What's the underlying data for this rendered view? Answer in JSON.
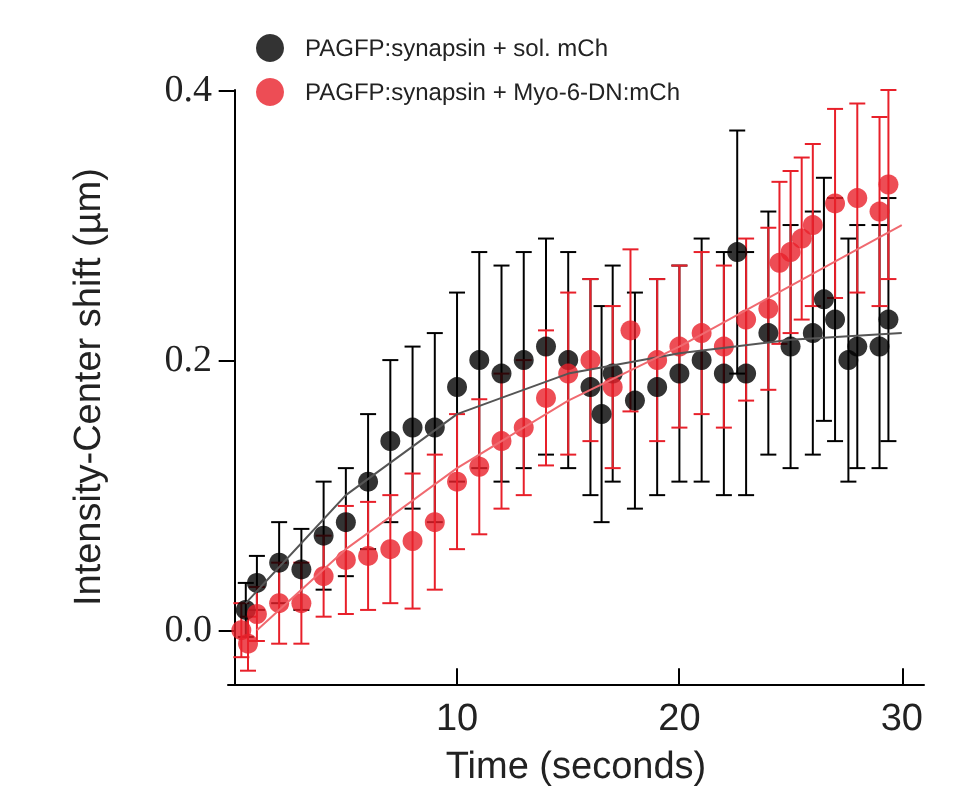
{
  "chart_data": {
    "type": "scatter",
    "xlabel": "Time (seconds)",
    "ylabel": "Intensity-Center shift (µm)",
    "xlim": [
      -0.3,
      31
    ],
    "xticks": [
      10,
      20,
      30
    ],
    "ylim": [
      -0.04,
      0.4
    ],
    "yticks": [
      {
        "value": 0,
        "label": "0.0"
      },
      {
        "value": 0.2,
        "label": "0.2"
      },
      {
        "value": 0.4,
        "label": "0.4"
      }
    ],
    "legend": "top left",
    "grid": false,
    "series": [
      {
        "name": "PAGFP:synapsin + sol. mCh",
        "color": "#000000",
        "marker": "circle",
        "x": [
          0.5,
          1,
          2,
          3,
          4,
          5,
          6,
          7,
          8,
          9,
          10,
          11,
          12,
          13,
          14,
          15,
          16,
          16.5,
          17,
          18,
          19,
          20,
          21,
          22,
          22.6,
          23,
          24,
          25,
          26,
          26.5,
          27,
          27.6,
          28,
          29,
          29.4
        ],
        "values": [
          0.015,
          0.035,
          0.05,
          0.045,
          0.07,
          0.08,
          0.11,
          0.14,
          0.15,
          0.15,
          0.18,
          0.2,
          0.19,
          0.2,
          0.21,
          0.2,
          0.18,
          0.16,
          0.19,
          0.17,
          0.18,
          0.19,
          0.2,
          0.19,
          0.28,
          0.19,
          0.22,
          0.21,
          0.22,
          0.245,
          0.23,
          0.2,
          0.21,
          0.21,
          0.23
        ],
        "errors": [
          0.02,
          0.02,
          0.03,
          0.03,
          0.04,
          0.04,
          0.05,
          0.06,
          0.06,
          0.07,
          0.07,
          0.08,
          0.08,
          0.08,
          0.08,
          0.08,
          0.08,
          0.08,
          0.08,
          0.08,
          0.08,
          0.08,
          0.09,
          0.09,
          0.09,
          0.09,
          0.09,
          0.09,
          0.09,
          0.09,
          0.09,
          0.09,
          0.09,
          0.09,
          0.09
        ]
      },
      {
        "name": "PAGFP:synapsin + Myo-6-DN:mCh",
        "color": "#e8202a",
        "marker": "circle",
        "x": [
          0.3,
          0.6,
          1,
          2,
          3,
          4,
          5,
          6,
          7,
          8,
          9,
          10,
          11,
          12,
          13,
          14,
          15,
          16,
          17,
          17.8,
          19,
          20,
          21,
          22,
          23,
          24,
          24.5,
          25,
          25.5,
          26,
          27,
          28,
          29,
          29.4
        ],
        "values": [
          0,
          -0.01,
          0.012,
          0.02,
          0.02,
          0.04,
          0.052,
          0.055,
          0.06,
          0.066,
          0.08,
          0.11,
          0.121,
          0.14,
          0.15,
          0.172,
          0.19,
          0.2,
          0.18,
          0.222,
          0.2,
          0.21,
          0.22,
          0.21,
          0.23,
          0.238,
          0.272,
          0.28,
          0.29,
          0.3,
          0.316,
          0.32,
          0.31,
          0.33
        ],
        "errors": [
          0.02,
          0.02,
          0.02,
          0.03,
          0.03,
          0.03,
          0.04,
          0.04,
          0.04,
          0.05,
          0.05,
          0.05,
          0.05,
          0.05,
          0.05,
          0.05,
          0.06,
          0.06,
          0.06,
          0.06,
          0.06,
          0.06,
          0.06,
          0.06,
          0.06,
          0.06,
          0.06,
          0.06,
          0.06,
          0.06,
          0.07,
          0.07,
          0.07,
          0.07
        ]
      },
      {
        "type": "line",
        "marker": "none",
        "color": "#555555",
        "x": [
          0.5,
          5,
          10,
          15,
          20,
          25,
          30
        ],
        "values": [
          0.02,
          0.1,
          0.16,
          0.19,
          0.205,
          0.215,
          0.22
        ]
      },
      {
        "type": "line",
        "marker": "none",
        "color": "#f06a70",
        "x": [
          1,
          5,
          10,
          15,
          20,
          25,
          30
        ],
        "values": [
          0.0,
          0.06,
          0.12,
          0.17,
          0.21,
          0.255,
          0.3
        ]
      }
    ]
  }
}
